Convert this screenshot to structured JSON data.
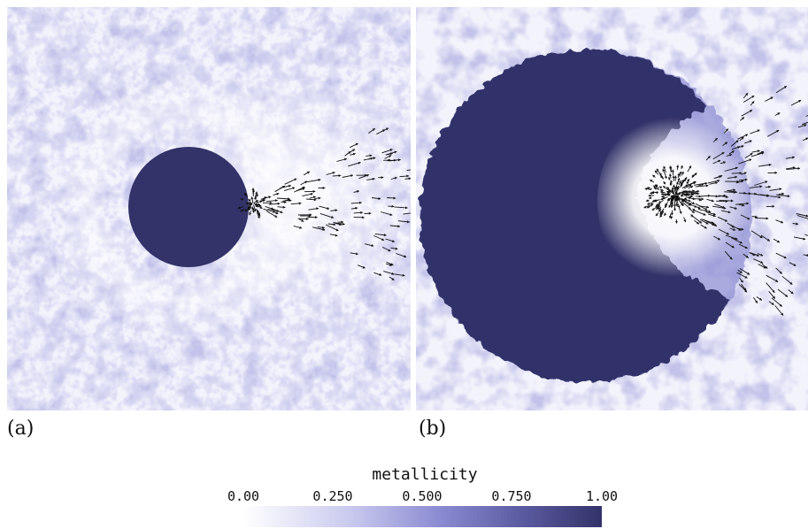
{
  "figure": {
    "panels": [
      {
        "label": "(a)"
      },
      {
        "label": "(b)"
      }
    ]
  },
  "colorbar": {
    "title": "metallicity",
    "ticks": [
      "0.00",
      "0.250",
      "0.500",
      "0.750",
      "1.00"
    ],
    "range": [
      0,
      1
    ],
    "color_low": "#ffffff",
    "color_high": "#33336a"
  },
  "colors": {
    "metal_rich": "#33336a",
    "metal_mid": "#8a8ad2",
    "metal_poor": "#ffffff",
    "arrow": "#111111"
  }
}
